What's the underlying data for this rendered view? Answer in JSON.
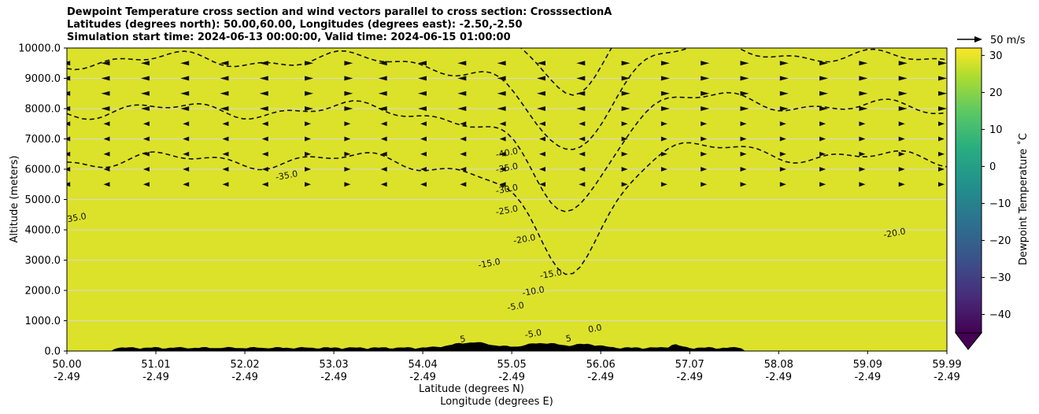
{
  "titles": {
    "line1": "Dewpoint Temperature cross section and wind vectors parallel to cross section: CrosssectionA",
    "line2": "Latitudes (degrees north): 50.00,60.00, Longitudes (degrees east): -2.50,-2.50",
    "line3": "Simulation start time: 2024-06-13 00:00:00, Valid time: 2024-06-15 01:00:00"
  },
  "chart_data": {
    "type": "heatmap",
    "ylabel": "Altitude (meters)",
    "xlabel_lat": "Latitude (degrees N)",
    "xlabel_lon": "Longitude (degrees E)",
    "ylim": [
      0,
      10000
    ],
    "y_ticks": [
      "0.0",
      "1000.0",
      "2000.0",
      "3000.0",
      "4000.0",
      "5000.0",
      "6000.0",
      "7000.0",
      "8000.0",
      "9000.0",
      "10000.0"
    ],
    "x_ticks": [
      {
        "lat": "50.00",
        "lon": "-2.49"
      },
      {
        "lat": "51.01",
        "lon": "-2.49"
      },
      {
        "lat": "52.02",
        "lon": "-2.49"
      },
      {
        "lat": "53.03",
        "lon": "-2.49"
      },
      {
        "lat": "54.04",
        "lon": "-2.49"
      },
      {
        "lat": "55.05",
        "lon": "-2.49"
      },
      {
        "lat": "56.06",
        "lon": "-2.49"
      },
      {
        "lat": "57.07",
        "lon": "-2.49"
      },
      {
        "lat": "58.08",
        "lon": "-2.49"
      },
      {
        "lat": "59.09",
        "lon": "-2.49"
      },
      {
        "lat": "59.99",
        "lon": "-2.49"
      }
    ],
    "grid": "horizontal",
    "colorbar": {
      "label": "Dewpoint Temperature ˚C",
      "range": [
        -45,
        32
      ],
      "ticks": [
        "−40",
        "−30",
        "−20",
        "−10",
        "0",
        "10",
        "20",
        "30"
      ],
      "tick_values": [
        -40,
        -30,
        -20,
        -10,
        0,
        10,
        20,
        30
      ]
    },
    "wind_key": "50 m/s",
    "contour_levels": [
      -40,
      -35,
      -30,
      -25,
      -20,
      -15,
      -10,
      -5,
      0,
      5
    ],
    "contour_labels": [
      {
        "text": "-40.0",
        "lat": 55.0,
        "alt": 6450
      },
      {
        "text": "-35.0",
        "lat": 55.0,
        "alt": 5950
      },
      {
        "text": "-30.0",
        "lat": 55.0,
        "alt": 5250
      },
      {
        "text": "-25.0",
        "lat": 55.0,
        "alt": 4550
      },
      {
        "text": "-20.0",
        "lat": 55.2,
        "alt": 3600
      },
      {
        "text": "-15.0",
        "lat": 54.8,
        "alt": 2800
      },
      {
        "text": "-15.0",
        "lat": 55.5,
        "alt": 2450
      },
      {
        "text": "-10.0",
        "lat": 55.3,
        "alt": 1880
      },
      {
        "text": "-5.0",
        "lat": 55.1,
        "alt": 1380
      },
      {
        "text": "-5.0",
        "lat": 55.3,
        "alt": 480
      },
      {
        "text": "0.0",
        "lat": 56.0,
        "alt": 650
      },
      {
        "text": "-35.0",
        "lat": 52.5,
        "alt": 5700
      },
      {
        "text": "-35.0",
        "lat": 50.1,
        "alt": 4300
      },
      {
        "text": "-20.0",
        "lat": 59.4,
        "alt": 3800
      },
      {
        "text": "5",
        "lat": 54.5,
        "alt": 300
      },
      {
        "text": "5",
        "lat": 55.7,
        "alt": 320
      }
    ]
  }
}
